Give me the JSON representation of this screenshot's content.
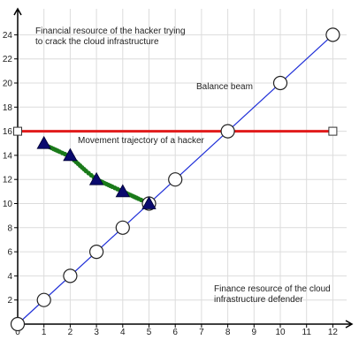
{
  "chart_data": {
    "type": "scatter",
    "xlim": [
      0,
      12.6
    ],
    "ylim": [
      0,
      25.5
    ],
    "x_ticks": [
      0,
      1,
      2,
      3,
      4,
      5,
      6,
      7,
      8,
      9,
      10,
      11,
      12
    ],
    "y_ticks": [
      2,
      4,
      6,
      8,
      10,
      12,
      14,
      16,
      18,
      20,
      22,
      24
    ],
    "x_tick_labels": [
      "0",
      "1",
      "2",
      "3",
      "4",
      "5",
      "6",
      "7",
      "8",
      "9",
      "10",
      "11",
      "12"
    ],
    "y_tick_labels": [
      "2",
      "4",
      "6",
      "8",
      "10",
      "12",
      "14",
      "16",
      "18",
      "20",
      "22",
      "24"
    ],
    "grid": true,
    "colors": {
      "grid": "#dcdcdc",
      "axis": "#000000",
      "defender_line": "#1f2fd8",
      "balance_beam": "#e11b1b",
      "trajectory": "#1a7a1a",
      "hacker_marker": "#0a0a6e"
    },
    "defender_line": {
      "x": [
        0,
        12
      ],
      "y": [
        0,
        24
      ]
    },
    "defender_points": {
      "x": [
        0,
        1,
        2,
        3,
        4,
        5,
        6,
        8,
        10,
        12
      ],
      "y": [
        0,
        2,
        4,
        6,
        8,
        10,
        12,
        16,
        20,
        24
      ]
    },
    "balance_beam": {
      "x": [
        0,
        12
      ],
      "y": [
        16,
        16
      ]
    },
    "hacker_points": {
      "x": [
        1,
        2,
        3,
        4,
        5
      ],
      "y": [
        15,
        14,
        12,
        11,
        10
      ]
    },
    "trajectory": {
      "x": [
        1,
        1.3,
        1.6,
        2,
        2.3,
        2.6,
        3,
        3.3,
        3.6,
        4,
        4.3,
        4.6,
        5
      ],
      "y": [
        14.9,
        14.6,
        14.3,
        13.9,
        13.3,
        12.7,
        12,
        11.7,
        11.4,
        11,
        10.7,
        10.4,
        10
      ]
    },
    "annotations": {
      "hacker_resource": "Financial resource of the hacker trying\nto crack the cloud infrastructure",
      "balance_beam": "Balance beam",
      "trajectory": "Movement trajectory of a hacker",
      "defender_resource": "Finance resource of the cloud\ninfrastructure defender"
    }
  }
}
